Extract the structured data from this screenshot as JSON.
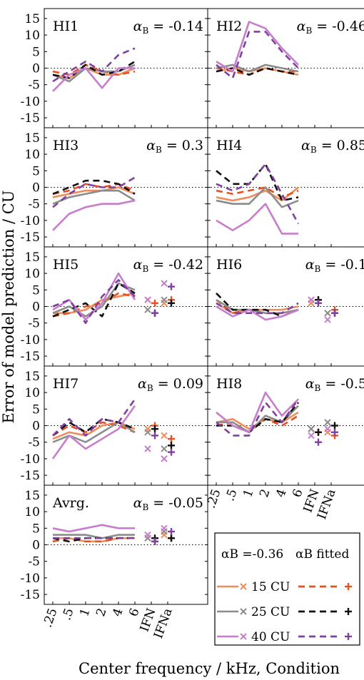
{
  "figure": {
    "ylabel": "Error of model prediction / CU",
    "xlabel": "Center frequency / kHz, Condition"
  },
  "legend": {
    "col1_header": "αB =-0.36",
    "col2_header": "αB fitted",
    "entries": [
      {
        "label": "15 CU",
        "color": "#f08c5a"
      },
      {
        "label": "25 CU",
        "color": "#8c8c8c"
      },
      {
        "label": "40 CU",
        "color": "#c77dcc"
      }
    ]
  },
  "colors": {
    "level_15": "#f08c5a",
    "level_15_fitted": "#e8501e",
    "level_25": "#8c8c8c",
    "level_25_fitted": "#111111",
    "level_40": "#c77dcc",
    "level_40_fitted": "#8040a0"
  },
  "chart_data": {
    "type": "line",
    "x_categories": [
      ".25",
      ".5",
      "1",
      "2",
      "4",
      "6",
      "IFN",
      "IFNa"
    ],
    "y_ticks": [
      15,
      10,
      5,
      0,
      -5,
      -10,
      -15
    ],
    "ylim": [
      -18,
      18
    ],
    "reference_line": 0,
    "panels": [
      {
        "name": "HI1",
        "alpha": "-0.14",
        "series": [
          {
            "level": "15 CU",
            "fitted": false,
            "values": [
              -2,
              -3,
              0,
              -2,
              -2,
              0
            ]
          },
          {
            "level": "15 CU",
            "fitted": true,
            "values": [
              -1,
              -2,
              1,
              -1,
              -2,
              -1
            ]
          },
          {
            "level": "25 CU",
            "fitted": false,
            "values": [
              -2,
              -4,
              0,
              -1,
              -1,
              1
            ]
          },
          {
            "level": "25 CU",
            "fitted": true,
            "values": [
              -2,
              -3,
              1,
              -2,
              -1,
              2
            ]
          },
          {
            "level": "40 CU",
            "fitted": false,
            "values": [
              -7,
              -2,
              0,
              -6,
              0,
              0
            ]
          },
          {
            "level": "40 CU",
            "fitted": true,
            "values": [
              -4,
              -1,
              2,
              -1,
              4,
              6
            ]
          }
        ]
      },
      {
        "name": "HI2",
        "alpha": "-0.46",
        "series": [
          {
            "level": "15 CU",
            "fitted": false,
            "values": [
              -1,
              0,
              -1,
              0,
              -1,
              -2
            ]
          },
          {
            "level": "15 CU",
            "fitted": true,
            "values": [
              0,
              -1,
              -2,
              0,
              -1,
              -1
            ]
          },
          {
            "level": "25 CU",
            "fitted": false,
            "values": [
              0,
              1,
              -1,
              1,
              0,
              -1
            ]
          },
          {
            "level": "25 CU",
            "fitted": true,
            "values": [
              -1,
              0,
              -2,
              0,
              -1,
              -2
            ]
          },
          {
            "level": "40 CU",
            "fitted": false,
            "values": [
              2,
              -1,
              14,
              12,
              6,
              1
            ]
          },
          {
            "level": "40 CU",
            "fitted": true,
            "values": [
              1,
              -3,
              11,
              11,
              5,
              0
            ]
          }
        ]
      },
      {
        "name": "HI3",
        "alpha": "0.3",
        "series": [
          {
            "level": "15 CU",
            "fitted": false,
            "values": [
              -3,
              -2,
              -1,
              -1,
              0,
              -2
            ]
          },
          {
            "level": "15 CU",
            "fitted": true,
            "values": [
              -2,
              -1,
              1,
              0,
              1,
              -1
            ]
          },
          {
            "level": "25 CU",
            "fitted": false,
            "values": [
              -5,
              -3,
              -2,
              -1,
              -1,
              -4
            ]
          },
          {
            "level": "25 CU",
            "fitted": true,
            "values": [
              -2,
              0,
              2,
              2,
              1,
              -2
            ]
          },
          {
            "level": "40 CU",
            "fitted": false,
            "values": [
              -13,
              -8,
              -6,
              -5,
              -5,
              -4
            ]
          },
          {
            "level": "40 CU",
            "fitted": true,
            "values": [
              -6,
              -2,
              1,
              0,
              0,
              3
            ]
          }
        ]
      },
      {
        "name": "HI4",
        "alpha": "0.85",
        "series": [
          {
            "level": "15 CU",
            "fitted": false,
            "values": [
              -3,
              -4,
              -3,
              -1,
              -4,
              0
            ]
          },
          {
            "level": "15 CU",
            "fitted": true,
            "values": [
              -1,
              -2,
              -1,
              0,
              -3,
              -1
            ]
          },
          {
            "level": "25 CU",
            "fitted": false,
            "values": [
              -4,
              -5,
              -5,
              0,
              -6,
              -4
            ]
          },
          {
            "level": "25 CU",
            "fitted": true,
            "values": [
              5,
              1,
              1,
              7,
              -4,
              -3
            ]
          },
          {
            "level": "40 CU",
            "fitted": false,
            "values": [
              -10,
              -13,
              -10,
              -5,
              -14,
              -14
            ]
          },
          {
            "level": "40 CU",
            "fitted": true,
            "values": [
              1,
              -1,
              1,
              7,
              -2,
              -11
            ]
          }
        ]
      },
      {
        "name": "HI5",
        "alpha": "-0.42",
        "series": [
          {
            "level": "15 CU",
            "fitted": false,
            "values": [
              -2,
              -2,
              -1,
              2,
              3,
              4
            ]
          },
          {
            "level": "15 CU",
            "fitted": true,
            "values": [
              -3,
              -2,
              0,
              1,
              4,
              3
            ]
          },
          {
            "level": "25 CU",
            "fitted": false,
            "values": [
              -2,
              0,
              -3,
              0,
              7,
              5
            ]
          },
          {
            "level": "25 CU",
            "fitted": true,
            "values": [
              -3,
              -1,
              1,
              -3,
              7,
              4
            ]
          },
          {
            "level": "40 CU",
            "fitted": false,
            "values": [
              -1,
              2,
              -4,
              1,
              10,
              2
            ]
          },
          {
            "level": "40 CU",
            "fitted": true,
            "values": [
              0,
              2,
              -5,
              3,
              8,
              3
            ]
          }
        ],
        "conditions": {
          "IFN": {
            "15": 2,
            "15f": 1,
            "25": -1,
            "25f": -2,
            "40": 2,
            "40f": -2
          },
          "IFNa": {
            "15": 1,
            "15f": 2,
            "25": 2,
            "25f": 1,
            "40": 7,
            "40f": 6
          }
        }
      },
      {
        "name": "HI6",
        "alpha": "-0.1",
        "series": [
          {
            "level": "15 CU",
            "fitted": false,
            "values": [
              1,
              -2,
              -1,
              -1,
              -1,
              0
            ]
          },
          {
            "level": "15 CU",
            "fitted": true,
            "values": [
              2,
              -2,
              -1,
              -2,
              -2,
              -1
            ]
          },
          {
            "level": "25 CU",
            "fitted": false,
            "values": [
              2,
              -1,
              -1,
              -2,
              -2,
              -1
            ]
          },
          {
            "level": "25 CU",
            "fitted": true,
            "values": [
              4,
              -1,
              -1,
              -1,
              -3,
              -1
            ]
          },
          {
            "level": "40 CU",
            "fitted": false,
            "values": [
              0,
              -3,
              -1,
              -4,
              -3,
              -1
            ]
          },
          {
            "level": "40 CU",
            "fitted": true,
            "values": [
              1,
              -2,
              -2,
              -2,
              -2,
              1
            ]
          }
        ],
        "conditions": {
          "IFN": {
            "15": 1,
            "15f": 2,
            "25": 2,
            "25f": 2,
            "40": 2,
            "40f": 1
          },
          "IFNa": {
            "15": -2,
            "15f": -1,
            "25": -2,
            "25f": -2,
            "40": -4,
            "40f": -2
          }
        }
      },
      {
        "name": "HI7",
        "alpha": "0.09",
        "series": [
          {
            "level": "15 CU",
            "fitted": false,
            "values": [
              -4,
              -2,
              -3,
              0,
              1,
              -1
            ]
          },
          {
            "level": "15 CU",
            "fitted": true,
            "values": [
              -3,
              0,
              -2,
              1,
              0,
              -2
            ]
          },
          {
            "level": "25 CU",
            "fitted": false,
            "values": [
              -5,
              -3,
              -5,
              -2,
              1,
              -2
            ]
          },
          {
            "level": "25 CU",
            "fitted": true,
            "values": [
              -3,
              1,
              -2,
              2,
              1,
              -1
            ]
          },
          {
            "level": "40 CU",
            "fitted": false,
            "values": [
              -10,
              -3,
              -7,
              -4,
              -1,
              6
            ]
          },
          {
            "level": "40 CU",
            "fitted": true,
            "values": [
              -3,
              2,
              -3,
              2,
              1,
              8
            ]
          }
        ],
        "conditions": {
          "IFN": {
            "15": -1,
            "15f": 0,
            "25": -2,
            "25f": -1,
            "40": -7,
            "40f": -3
          },
          "IFNa": {
            "15": -3,
            "15f": -4,
            "25": -7,
            "25f": -6,
            "40": -10,
            "40f": -8
          }
        }
      },
      {
        "name": "HI8",
        "alpha": "-0.5",
        "series": [
          {
            "level": "15 CU",
            "fitted": false,
            "values": [
              1,
              2,
              -1,
              2,
              1,
              4
            ]
          },
          {
            "level": "15 CU",
            "fitted": true,
            "values": [
              0,
              1,
              -2,
              2,
              0,
              3
            ]
          },
          {
            "level": "25 CU",
            "fitted": false,
            "values": [
              1,
              1,
              -2,
              3,
              1,
              6
            ]
          },
          {
            "level": "25 CU",
            "fitted": true,
            "values": [
              0,
              0,
              -2,
              2,
              1,
              7
            ]
          },
          {
            "level": "40 CU",
            "fitted": false,
            "values": [
              4,
              0,
              -2,
              10,
              3,
              8
            ]
          },
          {
            "level": "40 CU",
            "fitted": true,
            "values": [
              1,
              -3,
              -3,
              7,
              1,
              8
            ]
          }
        ],
        "conditions": {
          "IFN": {
            "15": -1,
            "15f": -2,
            "25": -1,
            "25f": -2,
            "40": -3,
            "40f": -5
          },
          "IFNa": {
            "15": -2,
            "15f": -3,
            "25": 1,
            "25f": 0,
            "40": -1,
            "40f": -2
          }
        }
      },
      {
        "name": "Avrg.",
        "alpha": "-0.05",
        "series": [
          {
            "level": "15 CU",
            "fitted": false,
            "values": [
              2,
              2,
              1,
              1,
              2,
              2
            ]
          },
          {
            "level": "15 CU",
            "fitted": true,
            "values": [
              1,
              2,
              1,
              1,
              2,
              2
            ]
          },
          {
            "level": "25 CU",
            "fitted": false,
            "values": [
              3,
              3,
              3,
              2,
              3,
              3
            ]
          },
          {
            "level": "25 CU",
            "fitted": true,
            "values": [
              2,
              1,
              2,
              2,
              2,
              2
            ]
          },
          {
            "level": "40 CU",
            "fitted": false,
            "values": [
              5,
              4,
              5,
              6,
              5,
              5
            ]
          },
          {
            "level": "40 CU",
            "fitted": true,
            "values": [
              2,
              2,
              2,
              2,
              2,
              2
            ]
          }
        ],
        "conditions": {
          "IFN": {
            "15": 2,
            "15f": 1,
            "25": 2,
            "25f": 2,
            "40": 3,
            "40f": 1
          },
          "IFNa": {
            "15": 3,
            "15f": 2,
            "25": 4,
            "25f": 2,
            "40": 5,
            "40f": 4
          }
        }
      }
    ]
  }
}
